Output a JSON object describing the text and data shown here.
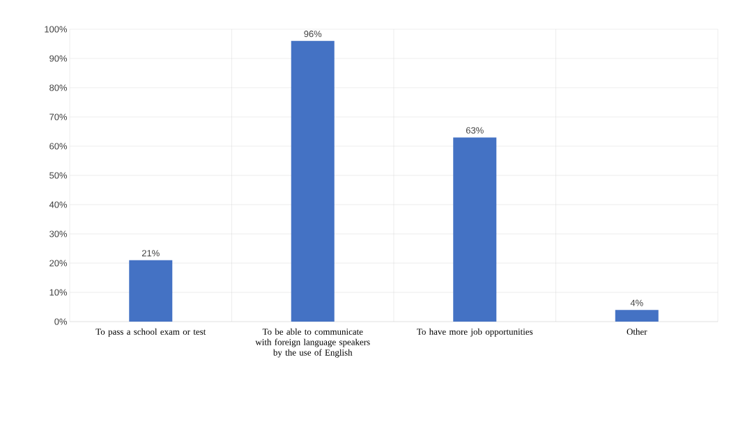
{
  "chart_data": {
    "type": "bar",
    "categories": [
      "To pass a school exam or test",
      "To be able to communicate with foreign language speakers by the use of English",
      "To have more job opportunities",
      "Other"
    ],
    "values": [
      21,
      96,
      63,
      4
    ],
    "value_labels": [
      "21%",
      "96%",
      "63%",
      "4%"
    ],
    "color": "#4472c4",
    "ylim": [
      0,
      100
    ],
    "yticks": [
      {
        "value": 0,
        "label": "0%"
      },
      {
        "value": 10,
        "label": "10%"
      },
      {
        "value": 20,
        "label": "20%"
      },
      {
        "value": 30,
        "label": "30%"
      },
      {
        "value": 40,
        "label": "40%"
      },
      {
        "value": 50,
        "label": "50%"
      },
      {
        "value": 60,
        "label": "60%"
      },
      {
        "value": 70,
        "label": "70%"
      },
      {
        "value": 80,
        "label": "80%"
      },
      {
        "value": 90,
        "label": "90%"
      },
      {
        "value": 100,
        "label": "100%"
      }
    ],
    "grid": true
  }
}
